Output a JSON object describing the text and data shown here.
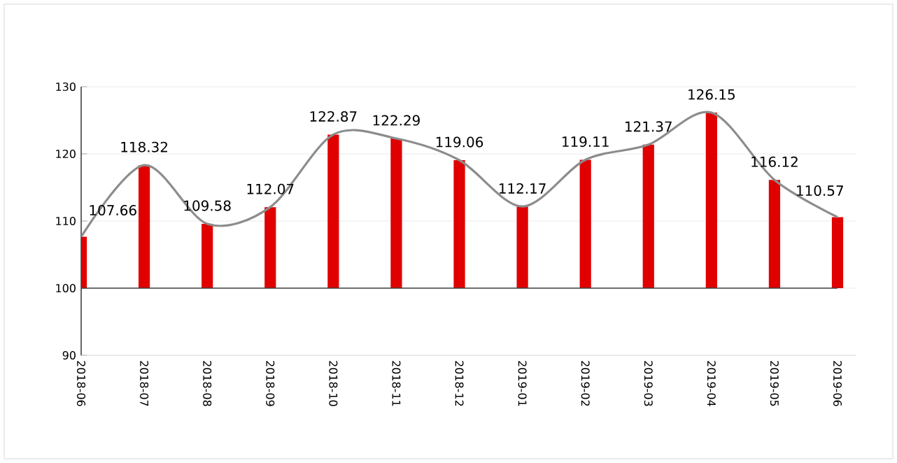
{
  "chart_data": {
    "type": "bar",
    "categories": [
      "2018-06",
      "2018-07",
      "2018-08",
      "2018-09",
      "2018-10",
      "2018-11",
      "2018-12",
      "2019-01",
      "2019-02",
      "2019-03",
      "2019-04",
      "2019-05",
      "2019-06"
    ],
    "series": [
      {
        "color": "#e00000",
        "base": [
          100,
          100,
          100,
          100,
          100,
          100,
          100,
          100,
          100,
          100,
          100,
          100,
          100
        ],
        "values": [
          7.66,
          18.32,
          9.58,
          12.07,
          22.87,
          22.29,
          19.06,
          12.17,
          19.11,
          21.37,
          26.15,
          16.12,
          10.57
        ]
      },
      {
        "type": "line",
        "color": "#8c8c8c",
        "values": [
          107.66,
          118.32,
          109.58,
          112.07,
          122.87,
          122.29,
          119.06,
          112.17,
          119.11,
          121.37,
          126.15,
          116.12,
          110.57
        ],
        "value_labels": [
          "107.66",
          "118.32",
          "109.58",
          "112.07",
          "122.87",
          "122.29",
          "119.06",
          "112.17",
          "119.11",
          "121.37",
          "126.15",
          "116.12",
          "110.57"
        ]
      }
    ],
    "ylim": [
      90,
      130
    ],
    "yticks": [
      90,
      100,
      110,
      120,
      130
    ],
    "ref_lines": [
      {
        "axis": "y",
        "value": 100,
        "color": "#404040"
      }
    ],
    "grid": "y",
    "marker": "none",
    "line_style": "solid"
  }
}
